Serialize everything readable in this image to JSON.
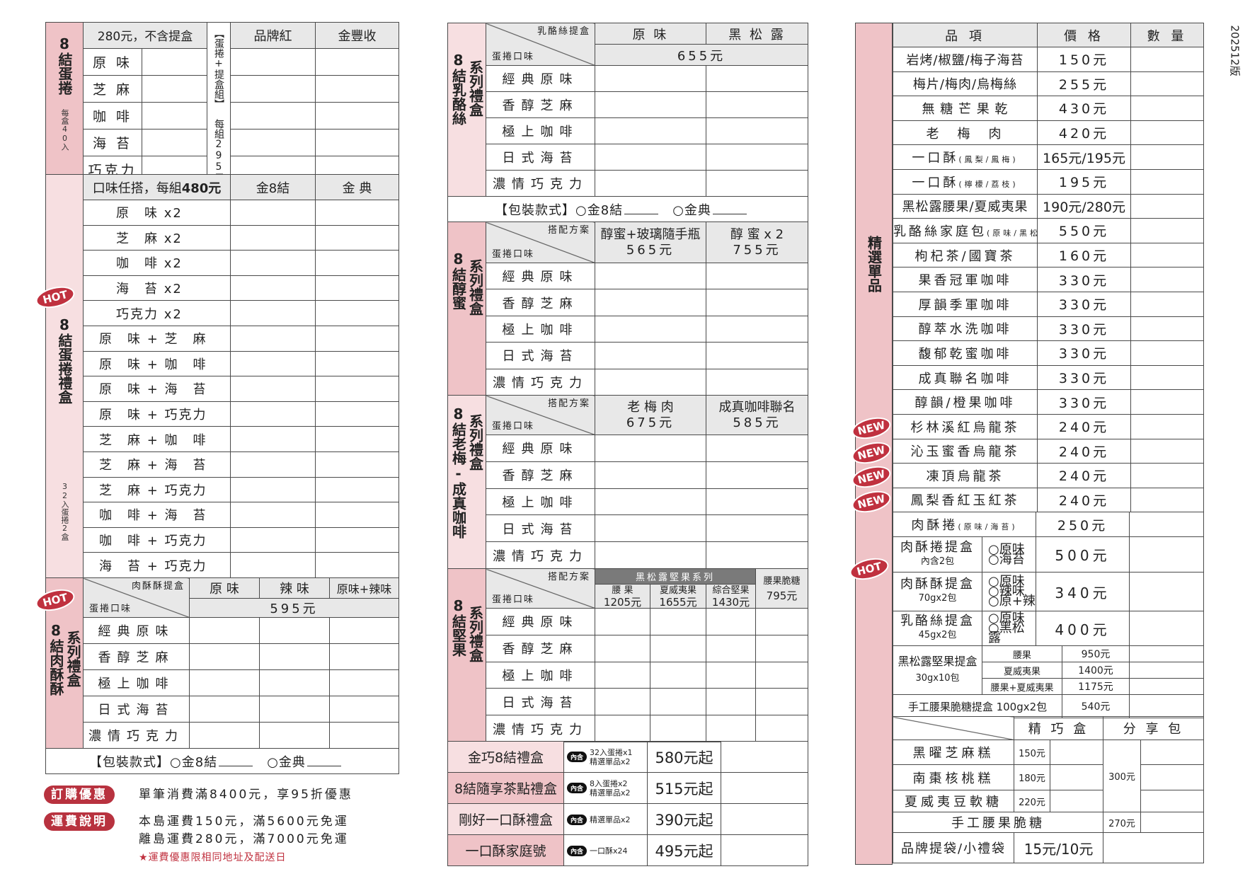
{
  "version": "202512版",
  "flavors": [
    "經典原味",
    "香醇芝麻",
    "極上咖啡",
    "日式海苔",
    "濃情巧克力"
  ],
  "packaging": {
    "label": "【包裝款式】",
    "opt1": "○金8結",
    "opt2": "○金典"
  },
  "left": {
    "eggroll": {
      "side_title": "8結蛋捲",
      "side_note": "每盒40入",
      "price_note": "280元，不含提盒",
      "set_label": "【蛋捲+提盒組】",
      "set_price": "每組295元",
      "col1": "品牌紅",
      "col2": "金豐收",
      "flavors": [
        "原 味",
        "芝 麻",
        "咖 啡",
        "海 苔",
        "巧克力"
      ]
    },
    "giftbox": {
      "badge": "HOT",
      "side_title": "8結蛋捲禮盒",
      "side_note": "32入蛋捲2盒",
      "header_text": "口味任搭，每組",
      "header_price": "480元",
      "col1": "金8結",
      "col2": "金 典",
      "combos": [
        "原　味 x2",
        "芝　麻 x2",
        "咖　啡 x2",
        "海　苔 x2",
        "巧克力 x2",
        "原　味 + 芝　麻",
        "原　味 + 咖　啡",
        "原　味 + 海　苔",
        "原　味 + 巧克力",
        "芝　麻 + 咖　啡",
        "芝　麻 + 海　苔",
        "芝　麻 + 巧克力",
        "咖　啡 + 海　苔",
        "咖　啡 + 巧克力",
        "海　苔 + 巧克力"
      ]
    },
    "meat": {
      "badge": "HOT",
      "side_title": "8結肉酥酥",
      "side_series": "系列禮盒",
      "corner_top": "肉酥酥提盒",
      "corner_bottom": "蛋捲口味",
      "cols": [
        "原 味",
        "辣 味",
        "原味+辣味"
      ],
      "price": "595元"
    },
    "promo": {
      "pill": "訂購優惠",
      "text": "單筆消費滿8400元，享95折優惠"
    },
    "shipping": {
      "pill": "運費說明",
      "line1": "本島運費150元，滿5600元免運",
      "line2": "離島運費280元，滿7000元免運",
      "note": "★運費優惠限相同地址及配送日"
    }
  },
  "middle": {
    "cheese": {
      "side_title": "8結乳酪絲",
      "side_series": "系列禮盒",
      "corner_top": "乳酪絲提盒",
      "corner_bottom": "蛋捲口味",
      "cols": [
        "原 味",
        "黑 松 露"
      ],
      "price": "655元"
    },
    "honey": {
      "side_title": "8結醇蜜",
      "side_series": "系列禮盒",
      "corner_top": "搭配方案",
      "corner_bottom": "蛋捲口味",
      "cols": [
        {
          "name": "醇蜜+玻璃隨手瓶",
          "price": "565元"
        },
        {
          "name": "醇 蜜 x 2",
          "price": "755元"
        }
      ]
    },
    "plum": {
      "side_title": "8結老梅-成真咖啡",
      "side_series": "系列禮盒",
      "corner_top": "搭配方案",
      "corner_bottom": "蛋捲口味",
      "cols": [
        {
          "name": "老 梅 肉",
          "price": "675元"
        },
        {
          "name": "成真咖啡聯名",
          "price": "585元"
        }
      ]
    },
    "nut": {
      "side_title": "8結堅果",
      "side_series": "系列禮盒",
      "corner_top": "搭配方案",
      "corner_bottom": "蛋捲口味",
      "group": "黑松露堅果系列",
      "cols": [
        {
          "name": "腰 果",
          "price": "1205元"
        },
        {
          "name": "夏威夷果",
          "price": "1655元"
        },
        {
          "name": "綜合堅果",
          "price": "1430元"
        }
      ],
      "extra": {
        "name": "腰果脆糖",
        "price": "795元"
      }
    },
    "gifts": [
      {
        "name": "金巧8結禮盒",
        "tag": "內含",
        "contents": [
          "32入蛋捲x1",
          "精選單品x2"
        ],
        "price": "580元起"
      },
      {
        "name": "8結隨享茶點禮盒",
        "tag": "內含",
        "contents": [
          "8入蛋捲x2",
          "精選單品x2"
        ],
        "price": "515元起"
      },
      {
        "name": "剛好一口酥禮盒",
        "tag": "內含",
        "contents": [
          "精選單品x2"
        ],
        "price": "390元起"
      },
      {
        "name": "一口酥家庭號",
        "tag": "內含",
        "contents": [
          "一口酥x24"
        ],
        "price": "495元起"
      }
    ]
  },
  "right": {
    "side_title": "精選單品",
    "headers": [
      "品 項",
      "價 格",
      "數 量"
    ],
    "new_badge": "NEW",
    "hot_badge": "HOT",
    "items": [
      {
        "name": "岩烤/椒鹽/梅子海苔",
        "price": "150元"
      },
      {
        "name": "梅片/梅肉/烏梅絲",
        "price": "255元"
      },
      {
        "name": "無 糖 芒 果 乾",
        "price": "430元"
      },
      {
        "name": "老　梅　肉",
        "price": "420元"
      },
      {
        "name": "一口酥",
        "sub": "(鳳梨/鳳梅)",
        "price": "165元/195元"
      },
      {
        "name": "一口酥",
        "sub": "(檸檬/荔枝)",
        "price": "195元"
      },
      {
        "name": "黑松露腰果/夏威夷果",
        "price": "190元/280元"
      },
      {
        "name": "乳酪絲家庭包",
        "sub": "(原味/黑松露)",
        "price": "550元"
      },
      {
        "name": "枸杞茶/國寶茶",
        "price": "160元"
      },
      {
        "name": "果香冠軍咖啡",
        "price": "330元"
      },
      {
        "name": "厚韻季軍咖啡",
        "price": "330元"
      },
      {
        "name": "醇萃水洗咖啡",
        "price": "330元"
      },
      {
        "name": "馥郁乾蜜咖啡",
        "price": "330元"
      },
      {
        "name": "成真聯名咖啡",
        "price": "330元"
      },
      {
        "name": "醇韻/橙果咖啡",
        "price": "330元"
      },
      {
        "name": "杉林溪紅烏龍茶",
        "price": "240元",
        "badge": "NEW"
      },
      {
        "name": "沁玉蜜香烏龍茶",
        "price": "240元",
        "badge": "NEW"
      },
      {
        "name": "凍頂烏龍茶",
        "price": "240元",
        "badge": "NEW"
      },
      {
        "name": "鳳梨香紅玉紅茶",
        "price": "240元",
        "badge": "NEW"
      }
    ],
    "rolls": {
      "name": "肉酥捲",
      "sub": "(原味/海苔)",
      "price": "250元"
    },
    "boxes": [
      {
        "name": "肉酥捲提盒",
        "sub": "內含2包",
        "options": [
          "○原味",
          "○海苔"
        ],
        "price": "500元"
      },
      {
        "name": "肉酥酥提盒",
        "sub": "70gx2包",
        "options": [
          "○原味",
          "○辣味",
          "○原+辣"
        ],
        "price": "340元"
      },
      {
        "name": "乳酪絲提盒",
        "sub": "45gx2包",
        "options": [
          "○原味",
          "○黑松露"
        ],
        "price": "400元"
      }
    ],
    "nutbox": {
      "name": "黑松露堅果提盒",
      "sub": "30gx10包",
      "variants": [
        {
          "name": "腰果",
          "price": "950元"
        },
        {
          "name": "夏威夷果",
          "price": "1400元"
        },
        {
          "name": "腰果+夏威夷果",
          "price": "1175元"
        }
      ]
    },
    "brittle_box": {
      "name": "手工腰果脆糖提盒 100gx2包",
      "price": "540元"
    },
    "cakes": {
      "cols": [
        "精 巧 盒",
        "分 享 包"
      ],
      "items": [
        {
          "name": "黑曜芝麻糕",
          "price": "150元"
        },
        {
          "name": "南棗核桃糕",
          "price": "180元"
        },
        {
          "name": "夏威夷豆軟糖",
          "price": "220元"
        }
      ],
      "share_price": "300元"
    },
    "brittle": {
      "name": "手工腰果脆糖",
      "price": "270元"
    },
    "bags": {
      "name": "品牌提袋/小禮袋",
      "price": "15元/10元"
    }
  },
  "colors": {
    "side_dark": "#efc3c7",
    "side_light": "#f7dfe1",
    "header_gray": "#e8e8e8",
    "badge_red": "#c0313f",
    "group_dark": "#7a7a7a"
  }
}
